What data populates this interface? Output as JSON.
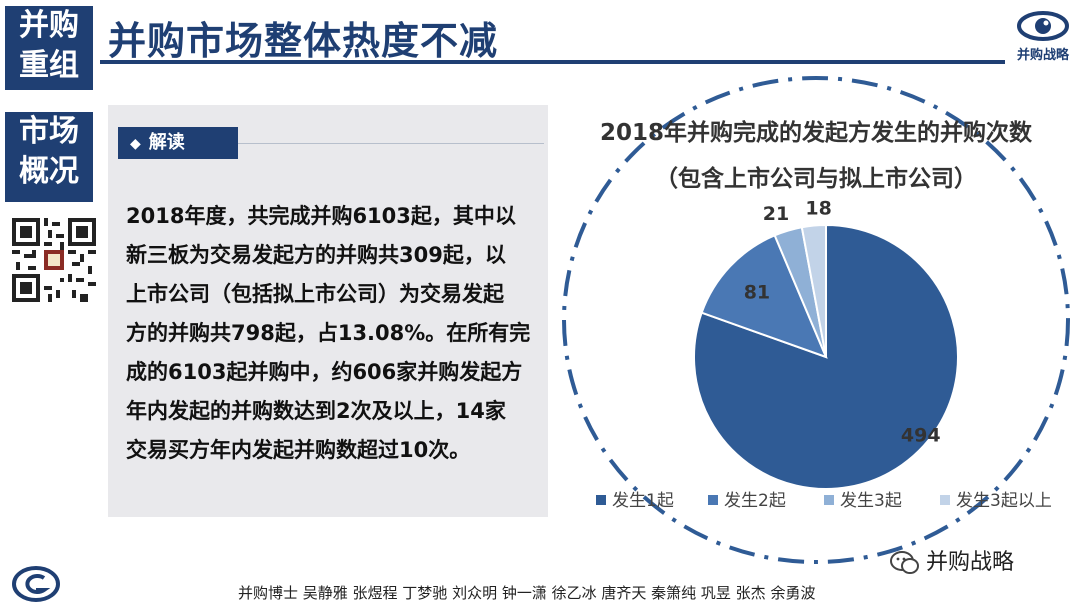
{
  "sidebar": {
    "block1": [
      "并购",
      "重组"
    ],
    "block2": [
      "市场",
      "概况"
    ]
  },
  "title": "并购市场整体热度不减",
  "logo_text": "并购战略",
  "panel": {
    "tag": "解读",
    "lines": [
      "2018年度，共完成并购6103起，其中以",
      "新三板为交易发起方的并购共309起，以",
      "上市公司（包括拟上市公司）为交易发起",
      "方的并购共798起，占13.08%。在所有完",
      "成的6103起并购中，约606家并购发起方",
      "年内发起的并购数达到2次及以上，14家",
      "交易买方年内发起并购数超过10次。"
    ]
  },
  "chart_data": {
    "type": "pie",
    "title": "2018年并购完成的发起方发生的并购次数",
    "subtitle": "（包含上市公司与拟上市公司）",
    "categories": [
      "发生1起",
      "发生2起",
      "发生3起",
      "发生3起以上"
    ],
    "values": [
      494,
      81,
      21,
      18
    ],
    "colors": [
      "#2f5b95",
      "#4a78b4",
      "#8fb0d6",
      "#c2d3e8"
    ],
    "legend_position": "bottom"
  },
  "footer": "并购博士 吴静雅 张煜程 丁梦驰 刘众明 钟一潇 徐乙冰 唐齐天 秦箫纯 巩昱 张杰 余勇波",
  "wechat": "并购战略"
}
